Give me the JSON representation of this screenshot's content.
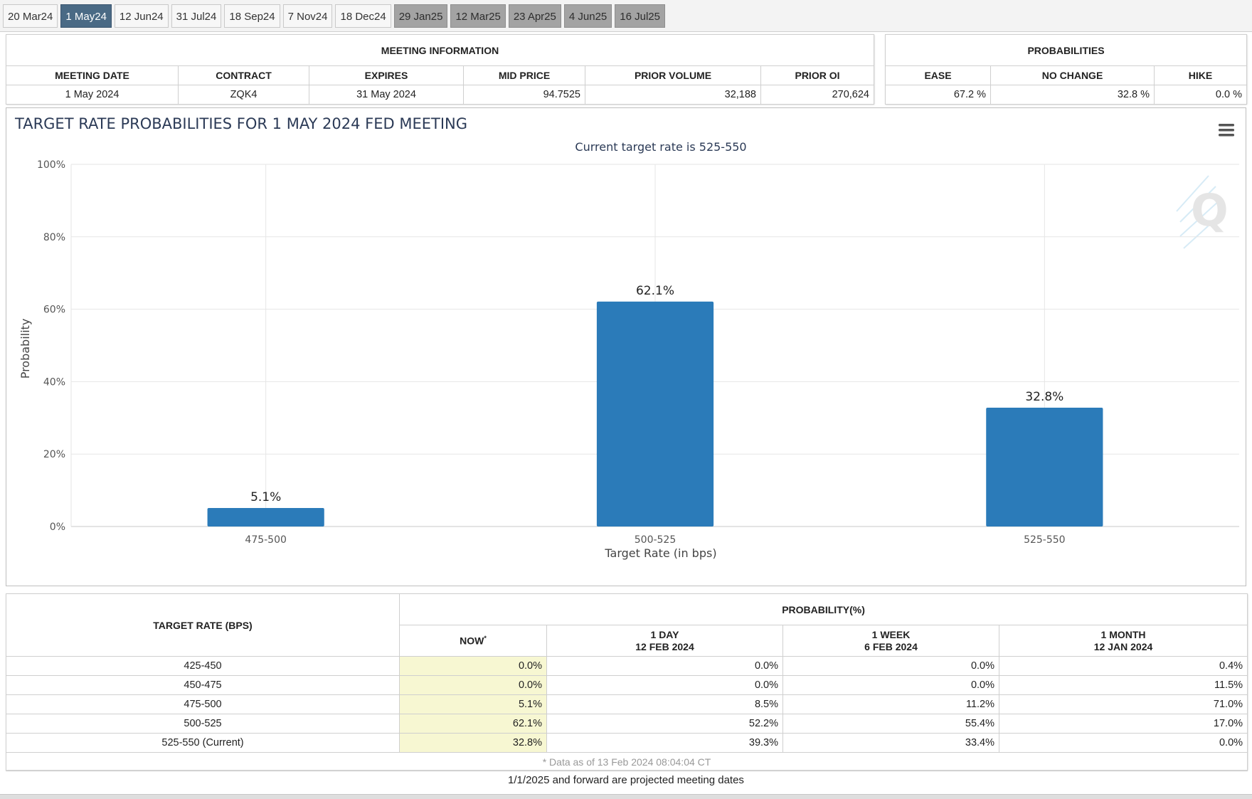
{
  "tabs": [
    {
      "label": "20 Mar24",
      "state": "normal"
    },
    {
      "label": "1 May24",
      "state": "active"
    },
    {
      "label": "12 Jun24",
      "state": "normal"
    },
    {
      "label": "31 Jul24",
      "state": "normal"
    },
    {
      "label": "18 Sep24",
      "state": "normal"
    },
    {
      "label": "7 Nov24",
      "state": "normal"
    },
    {
      "label": "18 Dec24",
      "state": "normal"
    },
    {
      "label": "29 Jan25",
      "state": "projected"
    },
    {
      "label": "12 Mar25",
      "state": "projected"
    },
    {
      "label": "23 Apr25",
      "state": "projected"
    },
    {
      "label": "4 Jun25",
      "state": "projected"
    },
    {
      "label": "16 Jul25",
      "state": "projected"
    }
  ],
  "meeting_info": {
    "title": "MEETING INFORMATION",
    "headers": [
      "MEETING DATE",
      "CONTRACT",
      "EXPIRES",
      "MID PRICE",
      "PRIOR VOLUME",
      "PRIOR OI"
    ],
    "values": [
      "1 May 2024",
      "ZQK4",
      "31 May 2024",
      "94.7525",
      "32,188",
      "270,624"
    ]
  },
  "probabilities": {
    "title": "PROBABILITIES",
    "headers": [
      "EASE",
      "NO CHANGE",
      "HIKE"
    ],
    "values": [
      "67.2 %",
      "32.8 %",
      "0.0 %"
    ]
  },
  "chart_data": {
    "type": "bar",
    "title": "TARGET RATE PROBABILITIES FOR 1 MAY 2024 FED MEETING",
    "subtitle": "Current target rate is 525-550",
    "xlabel": "Target Rate (in bps)",
    "ylabel": "Probability",
    "categories": [
      "475-500",
      "500-525",
      "525-550"
    ],
    "values": [
      5.1,
      62.1,
      32.8
    ],
    "data_labels": [
      "5.1%",
      "62.1%",
      "32.8%"
    ],
    "yticks": [
      "0%",
      "20%",
      "40%",
      "60%",
      "80%",
      "100%"
    ],
    "ylim": [
      0,
      100
    ],
    "grid": true,
    "bar_color": "#2b7bb9",
    "legend": "none"
  },
  "chart_menu_icon": "hamburger-menu-icon",
  "prob_table": {
    "rate_header": "TARGET RATE (BPS)",
    "prob_header": "PROBABILITY(%)",
    "col_now": "NOW",
    "col_now_mark": "*",
    "col_1day": "1 DAY",
    "col_1day_date": "12 FEB 2024",
    "col_1week": "1 WEEK",
    "col_1week_date": "6 FEB 2024",
    "col_1month": "1 MONTH",
    "col_1month_date": "12 JAN 2024",
    "rows": [
      {
        "rate": "425-450",
        "now": "0.0%",
        "day": "0.0%",
        "week": "0.0%",
        "month": "0.4%"
      },
      {
        "rate": "450-475",
        "now": "0.0%",
        "day": "0.0%",
        "week": "0.0%",
        "month": "11.5%"
      },
      {
        "rate": "475-500",
        "now": "5.1%",
        "day": "8.5%",
        "week": "11.2%",
        "month": "71.0%"
      },
      {
        "rate": "500-525",
        "now": "62.1%",
        "day": "52.2%",
        "week": "55.4%",
        "month": "17.0%"
      },
      {
        "rate": "525-550 (Current)",
        "now": "32.8%",
        "day": "39.3%",
        "week": "33.4%",
        "month": "0.0%"
      }
    ],
    "data_note": "* Data as of 13 Feb 2024 08:04:04 CT"
  },
  "footer_note": "1/1/2025 and forward are projected meeting dates"
}
